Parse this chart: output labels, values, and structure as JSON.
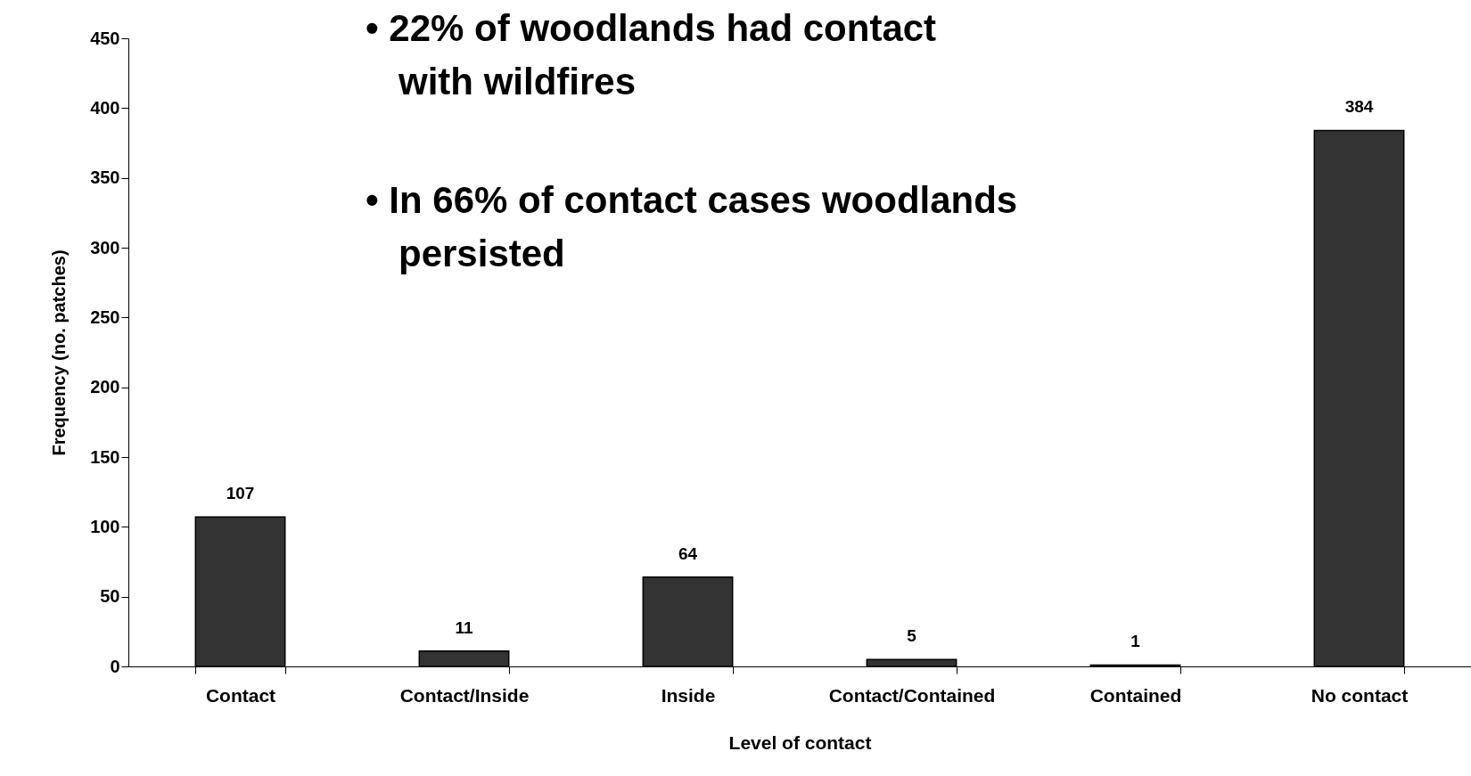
{
  "chart_data": {
    "type": "bar",
    "categories": [
      "Contact",
      "Contact/Inside",
      "Inside",
      "Contact/Contained",
      "Contained",
      "No contact"
    ],
    "values": [
      107,
      11,
      64,
      5,
      1,
      384
    ],
    "color": "#333333",
    "xlabel": "Level of contact",
    "ylabel": "Frequency (no. patches)",
    "ylim": [
      0,
      450
    ],
    "yticks": [
      0,
      50,
      100,
      150,
      200,
      250,
      300,
      350,
      400,
      450
    ],
    "grid": false,
    "data_labels": true,
    "annotations": [
      "• 22% of woodlands  had contact with wildfires",
      "• In 66% of contact cases woodlands persisted"
    ]
  }
}
